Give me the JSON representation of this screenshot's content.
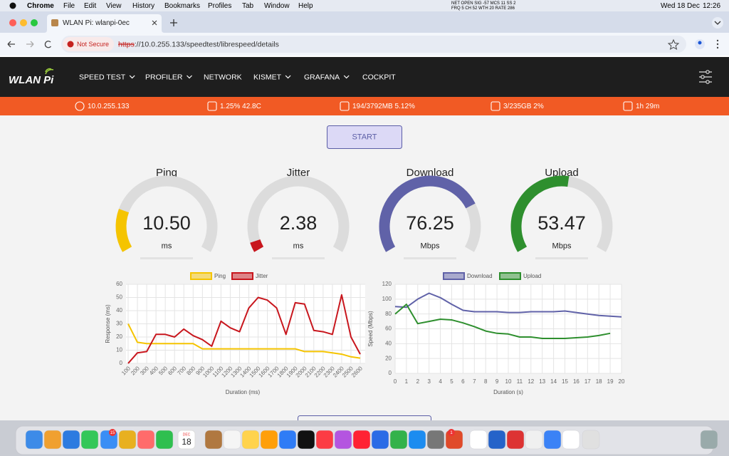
{
  "menubar": {
    "app": "Chrome",
    "menus": [
      "File",
      "Edit",
      "View",
      "History",
      "Bookmarks",
      "Profiles",
      "Tab",
      "Window",
      "Help"
    ],
    "net_status": [
      "NET OPEN SIG -57 MCS 11 SS 2",
      "FRQ 5 CH 52 WTH 20 RATE 286"
    ],
    "date": "Wed 18 Dec",
    "time": "12:26"
  },
  "browser": {
    "tab_title": "WLAN Pi: wlanpi-0ec",
    "security": "Not Secure",
    "url_scheme": "https",
    "url_rest": "://10.0.255.133/speedtest/librespeed/details"
  },
  "nav": {
    "logo": "WLAN Pi",
    "items": [
      "SPEED TEST",
      "PROFILER",
      "NETWORK",
      "KISMET",
      "GRAFANA",
      "COCKPIT"
    ]
  },
  "status": [
    "10.0.255.133",
    "1.25% 42.8C",
    "194/3792MB 5.12%",
    "3/235GB 2%",
    "1h 29m"
  ],
  "start_button": "START",
  "gauges": [
    {
      "label": "Ping",
      "value": 10.5,
      "value_label": "10.50",
      "unit": "ms",
      "color": "#f5c400"
    },
    {
      "label": "Jitter",
      "value": 2.38,
      "value_label": "2.38",
      "unit": "ms",
      "color": "#c8161d"
    },
    {
      "label": "Download",
      "value": 76.25,
      "value_label": "76.25",
      "unit": "Mbps",
      "color": "#6062a8"
    },
    {
      "label": "Upload",
      "value": 53.47,
      "value_label": "53.47",
      "unit": "Mbps",
      "color": "#2e8f2e"
    }
  ],
  "chart_data": [
    {
      "type": "line",
      "y_label": "Response (ms)",
      "x_label": "Duration (ms)",
      "categories": [
        100,
        200,
        300,
        400,
        500,
        600,
        700,
        800,
        900,
        1000,
        1100,
        1200,
        1300,
        1400,
        1500,
        1600,
        1700,
        1800,
        1900,
        2000,
        2100,
        2200,
        2300,
        2400,
        2500,
        2600
      ],
      "series": [
        {
          "name": "Ping",
          "color": "#f5c400",
          "values": [
            30,
            16,
            15,
            15,
            15,
            15,
            15,
            15,
            11,
            11,
            11,
            11,
            11,
            11,
            11,
            11,
            11,
            11,
            11,
            9,
            9,
            9,
            8,
            7,
            5,
            4
          ]
        },
        {
          "name": "Jitter",
          "color": "#c8161d",
          "values": [
            0,
            8,
            9,
            22,
            22,
            20,
            26,
            21,
            18,
            13,
            32,
            27,
            24,
            42,
            50,
            48,
            42,
            22,
            46,
            45,
            25,
            24,
            22,
            52,
            20,
            7
          ]
        }
      ],
      "ylim": [
        0,
        60
      ],
      "yticks": [
        0,
        10,
        20,
        30,
        40,
        50,
        60
      ],
      "grid": true
    },
    {
      "type": "line",
      "y_label": "Speed (Mbps)",
      "x_label": "Duration (s)",
      "x": [
        0,
        1,
        2,
        3,
        4,
        5,
        6,
        7,
        8,
        9,
        10,
        11,
        12,
        13,
        14,
        15,
        16,
        17,
        18,
        19,
        20
      ],
      "series": [
        {
          "name": "Download",
          "color": "#6062a8",
          "values": [
            90,
            89,
            100,
            108,
            102,
            93,
            85,
            83,
            83,
            83,
            82,
            82,
            83,
            83,
            83,
            84,
            82,
            80,
            78,
            77,
            76
          ]
        },
        {
          "name": "Upload",
          "color": "#2e8f2e",
          "values": [
            80,
            93,
            67,
            70,
            73,
            72,
            68,
            63,
            57,
            54,
            53,
            49,
            49,
            47,
            47,
            47,
            48,
            49,
            51,
            54,
            null
          ]
        }
      ],
      "xlim": [
        0,
        20
      ],
      "xticks": [
        0,
        1,
        2,
        3,
        4,
        5,
        6,
        7,
        8,
        9,
        10,
        11,
        12,
        13,
        14,
        15,
        16,
        17,
        18,
        19,
        20
      ],
      "ylim": [
        0,
        120
      ],
      "yticks": [
        0,
        20,
        40,
        60,
        80,
        100,
        120
      ],
      "grid": true
    }
  ],
  "dock": {
    "calendar_month": "DEC",
    "calendar_day": "18",
    "badges": [
      "15",
      "1"
    ]
  }
}
